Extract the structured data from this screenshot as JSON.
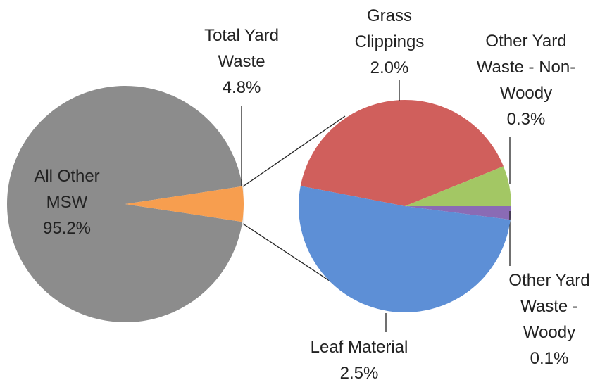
{
  "chart_data": [
    {
      "type": "pie",
      "categories": [
        "All Other MSW",
        "Total Yard Waste"
      ],
      "values": [
        95.2,
        4.8
      ],
      "value_labels": [
        "95.2%",
        "4.8%"
      ],
      "colors": [
        "#8c8c8c",
        "#f79e4f"
      ]
    },
    {
      "type": "pie",
      "categories": [
        "Grass Clippings",
        "Other Yard Waste - Non-Woody",
        "Other Yard Waste - Woody",
        "Leaf Material"
      ],
      "values": [
        2.0,
        0.3,
        0.1,
        2.5
      ],
      "value_labels": [
        "2.0%",
        "0.3%",
        "0.1%",
        "2.5%"
      ],
      "colors": [
        "#d05f5c",
        "#a3c764",
        "#8a6bb5",
        "#5d8fd6"
      ]
    }
  ]
}
